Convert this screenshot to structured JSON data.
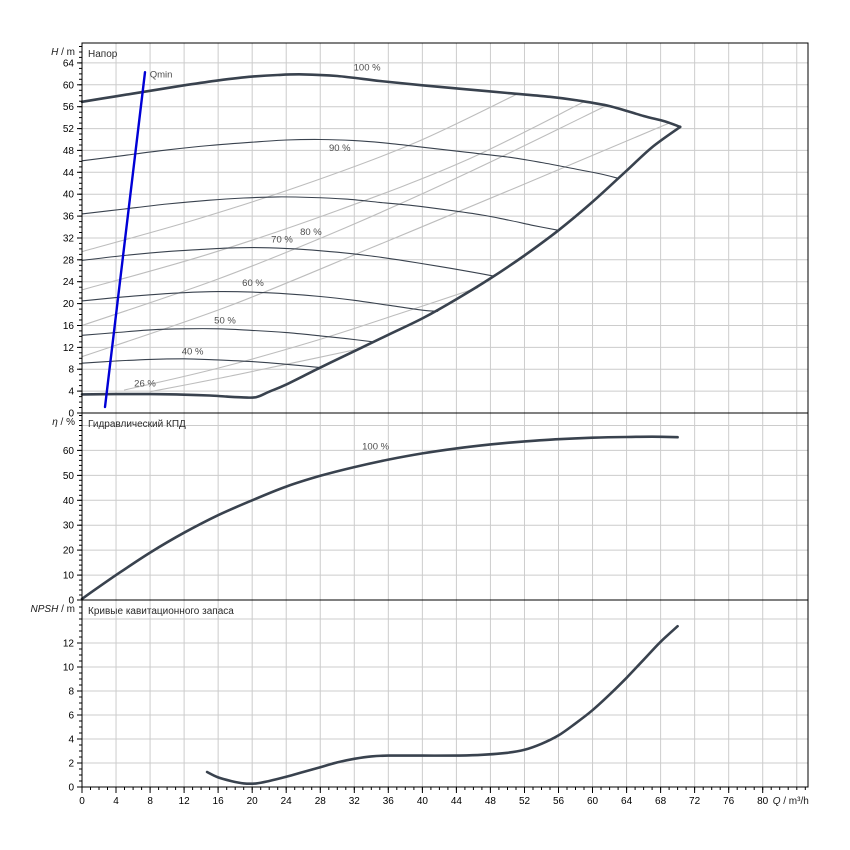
{
  "colors": {
    "curve": "#39424e",
    "iso": "#bdbdbd",
    "qmin_line": "#0000d6",
    "grid": "#cccccc",
    "axis": "#000000",
    "label": "#4d4d4d"
  },
  "chart_data": {
    "type": "line",
    "x_axis": {
      "label_italic": "Q",
      "label_rest": " / m³/h",
      "ticks": [
        0,
        4,
        8,
        12,
        16,
        20,
        24,
        28,
        32,
        36,
        40,
        44,
        48,
        52,
        56,
        60,
        64,
        68,
        72,
        76,
        80
      ],
      "minor_step": 1,
      "max": 85.3
    },
    "panels": [
      {
        "id": "head",
        "title": "Напор",
        "y_axis": {
          "label_italic": "H",
          "label_rest": " / m",
          "ticks": [
            0,
            4,
            8,
            12,
            16,
            20,
            24,
            28,
            32,
            36,
            40,
            44,
            48,
            52,
            56,
            60,
            64
          ],
          "minor_step": 1
        },
        "series": [
          {
            "name": "iso-efficiency-1",
            "role": "iso",
            "points": [
              [
                0,
                29.5
              ],
              [
                13,
                35.2
              ],
              [
                26,
                41.7
              ],
              [
                39,
                49.3
              ],
              [
                51,
                58.2
              ]
            ]
          },
          {
            "name": "iso-efficiency-2",
            "role": "iso",
            "points": [
              [
                0,
                22.5
              ],
              [
                15,
                29.1
              ],
              [
                30,
                37.0
              ],
              [
                45,
                46.1
              ],
              [
                59,
                56.9
              ]
            ]
          },
          {
            "name": "iso-efficiency-3",
            "role": "iso",
            "points": [
              [
                0,
                16.0
              ],
              [
                16,
                24.5
              ],
              [
                31,
                33.9
              ],
              [
                46,
                44.4
              ],
              [
                61.5,
                56.1
              ]
            ]
          },
          {
            "name": "iso-efficiency-4",
            "role": "iso",
            "points": [
              [
                0,
                10.3
              ],
              [
                17,
                19.4
              ],
              [
                34,
                30.2
              ],
              [
                51,
                41.2
              ],
              [
                69,
                53.0
              ]
            ]
          },
          {
            "name": "iso-efficiency-5",
            "role": "iso",
            "points": [
              [
                5,
                4.2
              ],
              [
                16,
                8.2
              ],
              [
                27,
                13.0
              ],
              [
                37,
                18.0
              ],
              [
                46.5,
                22.9
              ]
            ]
          },
          {
            "name": "iso-efficiency-6",
            "role": "iso",
            "points": [
              [
                8,
                3.9
              ],
              [
                16,
                6.3
              ],
              [
                24,
                8.9
              ],
              [
                32.5,
                11.7
              ]
            ]
          },
          {
            "name": "speed-90",
            "role": "thin",
            "points": [
              [
                0,
                46.1
              ],
              [
                5,
                47.1
              ],
              [
                10,
                48.1
              ],
              [
                15,
                48.9
              ],
              [
                20,
                49.5
              ],
              [
                24,
                49.9
              ],
              [
                28,
                50.0
              ],
              [
                32,
                49.8
              ],
              [
                36,
                49.3
              ],
              [
                40,
                48.6
              ],
              [
                45,
                47.7
              ],
              [
                50,
                46.8
              ],
              [
                54,
                45.8
              ],
              [
                58,
                44.6
              ],
              [
                61,
                43.7
              ],
              [
                63,
                42.9
              ]
            ]
          },
          {
            "name": "speed-80",
            "role": "thin",
            "points": [
              [
                0,
                36.4
              ],
              [
                5,
                37.3
              ],
              [
                10,
                38.2
              ],
              [
                15,
                38.9
              ],
              [
                19,
                39.3
              ],
              [
                23,
                39.5
              ],
              [
                27,
                39.4
              ],
              [
                31,
                39.1
              ],
              [
                35,
                38.5
              ],
              [
                39,
                37.9
              ],
              [
                43,
                37.1
              ],
              [
                47,
                36.2
              ],
              [
                50,
                35.3
              ],
              [
                53,
                34.3
              ],
              [
                56,
                33.4
              ]
            ]
          },
          {
            "name": "speed-70",
            "role": "thin",
            "points": [
              [
                0,
                27.9
              ],
              [
                5,
                28.8
              ],
              [
                10,
                29.5
              ],
              [
                14,
                29.9
              ],
              [
                18,
                30.2
              ],
              [
                22,
                30.2
              ],
              [
                26,
                29.9
              ],
              [
                30,
                29.4
              ],
              [
                34,
                28.7
              ],
              [
                38,
                27.8
              ],
              [
                42,
                26.8
              ],
              [
                45,
                26.0
              ],
              [
                48.5,
                25.0
              ]
            ]
          },
          {
            "name": "speed-60",
            "role": "thin",
            "points": [
              [
                0,
                20.5
              ],
              [
                4,
                21.1
              ],
              [
                8,
                21.6
              ],
              [
                12,
                22.0
              ],
              [
                16,
                22.2
              ],
              [
                20,
                22.1
              ],
              [
                24,
                21.8
              ],
              [
                28,
                21.3
              ],
              [
                32,
                20.6
              ],
              [
                36,
                19.7
              ],
              [
                40,
                18.8
              ],
              [
                41.8,
                18.6
              ]
            ]
          },
          {
            "name": "speed-50",
            "role": "thin",
            "points": [
              [
                0,
                14.2
              ],
              [
                4,
                14.7
              ],
              [
                8,
                15.2
              ],
              [
                12,
                15.4
              ],
              [
                16,
                15.4
              ],
              [
                20,
                15.1
              ],
              [
                24,
                14.7
              ],
              [
                28,
                14.1
              ],
              [
                31,
                13.6
              ],
              [
                34.3,
                13.0
              ]
            ]
          },
          {
            "name": "speed-40",
            "role": "thin",
            "points": [
              [
                0,
                9.1
              ],
              [
                4,
                9.5
              ],
              [
                8,
                9.8
              ],
              [
                12,
                9.9
              ],
              [
                16,
                9.7
              ],
              [
                20,
                9.4
              ],
              [
                24,
                8.9
              ],
              [
                28,
                8.3
              ]
            ]
          },
          {
            "name": "operating-envelope",
            "role": "thick",
            "points": [
              [
                0,
                3.4
              ],
              [
                4,
                3.45
              ],
              [
                8,
                3.45
              ],
              [
                12,
                3.35
              ],
              [
                15,
                3.2
              ],
              [
                17,
                3.0
              ],
              [
                19,
                2.85
              ],
              [
                20.5,
                2.9
              ],
              [
                22,
                3.9
              ],
              [
                24,
                5.2
              ],
              [
                28,
                8.3
              ],
              [
                32,
                11.3
              ],
              [
                36,
                14.3
              ],
              [
                40,
                17.3
              ],
              [
                44,
                20.8
              ],
              [
                48,
                24.6
              ],
              [
                52,
                28.8
              ],
              [
                56,
                33.4
              ],
              [
                60,
                38.6
              ],
              [
                64,
                44.3
              ],
              [
                67,
                48.6
              ],
              [
                70.3,
                52.3
              ]
            ]
          },
          {
            "name": "speed-100",
            "role": "thick",
            "points": [
              [
                0,
                56.9
              ],
              [
                4,
                57.9
              ],
              [
                8,
                58.9
              ],
              [
                12,
                59.9
              ],
              [
                16,
                60.8
              ],
              [
                20,
                61.5
              ],
              [
                23,
                61.8
              ],
              [
                26,
                61.9
              ],
              [
                30,
                61.6
              ],
              [
                35,
                60.7
              ],
              [
                40,
                59.9
              ],
              [
                45,
                59.2
              ],
              [
                50,
                58.5
              ],
              [
                55,
                57.8
              ],
              [
                58,
                57.2
              ],
              [
                62,
                56.1
              ],
              [
                66,
                54.3
              ],
              [
                68.5,
                53.3
              ],
              [
                70.3,
                52.3
              ]
            ]
          },
          {
            "name": "qmin-limit",
            "role": "limit",
            "points": [
              [
                2.7,
                1.1
              ],
              [
                7.4,
                62.3
              ]
            ]
          }
        ],
        "labels": [
          {
            "text": "100 %",
            "x": 33.5,
            "y": 62.6
          },
          {
            "text": "90 %",
            "x": 30.3,
            "y": 47.9
          },
          {
            "text": "80 %",
            "x": 26.9,
            "y": 32.5
          },
          {
            "text": "70 %",
            "x": 23.5,
            "y": 31.2
          },
          {
            "text": "60 %",
            "x": 20.1,
            "y": 23.2
          },
          {
            "text": "50 %",
            "x": 16.8,
            "y": 16.4
          },
          {
            "text": "40 %",
            "x": 13.0,
            "y": 10.7
          },
          {
            "text": "26 %",
            "x": 7.4,
            "y": 4.8
          },
          {
            "text": "Qmin",
            "x": 9.3,
            "y": 61.3
          }
        ]
      },
      {
        "id": "eff",
        "title": "Гидравлический КПД",
        "y_axis": {
          "label_italic": "η",
          "label_rest": " / %",
          "ticks": [
            0,
            10,
            20,
            30,
            40,
            50,
            60
          ],
          "minor_step": 2
        },
        "series": [
          {
            "name": "efficiency-100",
            "role": "thick",
            "points": [
              [
                0,
                0.5
              ],
              [
                4,
                10
              ],
              [
                8,
                19
              ],
              [
                12,
                27
              ],
              [
                16,
                34
              ],
              [
                20,
                40
              ],
              [
                24,
                45.5
              ],
              [
                28,
                49.8
              ],
              [
                32,
                53.3
              ],
              [
                36,
                56.3
              ],
              [
                40,
                58.8
              ],
              [
                44,
                60.8
              ],
              [
                48,
                62.4
              ],
              [
                52,
                63.6
              ],
              [
                56,
                64.5
              ],
              [
                60,
                65.1
              ],
              [
                64,
                65.4
              ],
              [
                67,
                65.5
              ],
              [
                70,
                65.3
              ]
            ]
          }
        ],
        "labels": [
          {
            "text": "100 %",
            "x": 34.5,
            "y": 60.3
          }
        ]
      },
      {
        "id": "npsh",
        "title": "Кривые кавитационного запаса",
        "y_axis": {
          "label_italic": "NPSH",
          "label_rest": " / m",
          "ticks": [
            0,
            2,
            4,
            6,
            8,
            10,
            12
          ],
          "minor_step": 0.5
        },
        "series": [
          {
            "name": "npsh-curve",
            "role": "thick",
            "points": [
              [
                14.7,
                1.25
              ],
              [
                16,
                0.8
              ],
              [
                17.5,
                0.5
              ],
              [
                19,
                0.3
              ],
              [
                20.5,
                0.3
              ],
              [
                22,
                0.5
              ],
              [
                24,
                0.85
              ],
              [
                26,
                1.25
              ],
              [
                28,
                1.65
              ],
              [
                30,
                2.05
              ],
              [
                32,
                2.35
              ],
              [
                34,
                2.55
              ],
              [
                36,
                2.62
              ],
              [
                40,
                2.62
              ],
              [
                44,
                2.62
              ],
              [
                47,
                2.68
              ],
              [
                50,
                2.85
              ],
              [
                52,
                3.1
              ],
              [
                54,
                3.6
              ],
              [
                56,
                4.3
              ],
              [
                58,
                5.3
              ],
              [
                60,
                6.4
              ],
              [
                62,
                7.7
              ],
              [
                64,
                9.1
              ],
              [
                66,
                10.6
              ],
              [
                68,
                12.1
              ],
              [
                70,
                13.4
              ]
            ]
          }
        ],
        "labels": []
      }
    ]
  }
}
